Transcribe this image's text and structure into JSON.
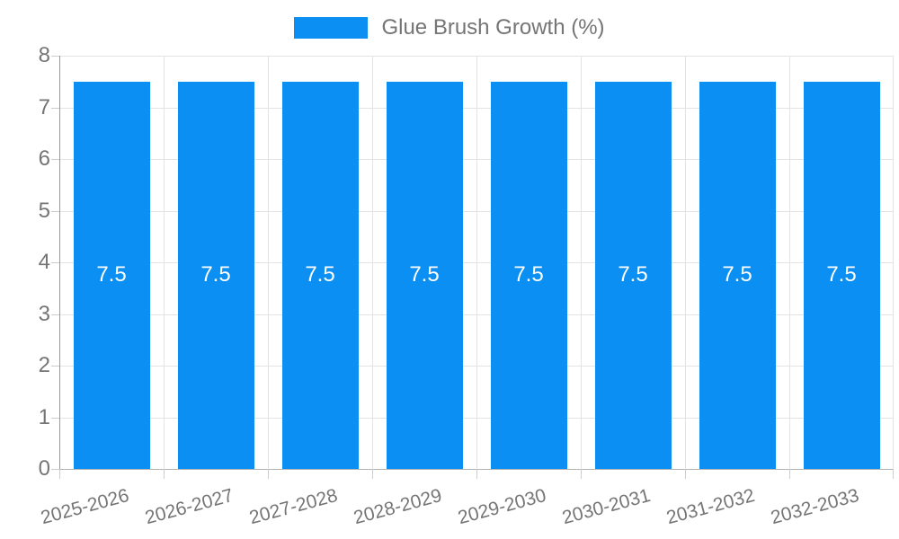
{
  "chart_data": {
    "type": "bar",
    "title": "",
    "categories": [
      "2025-2026",
      "2026-2027",
      "2027-2028",
      "2028-2029",
      "2029-2030",
      "2030-2031",
      "2031-2032",
      "2032-2033"
    ],
    "series": [
      {
        "name": "Glue Brush Growth (%)",
        "values": [
          7.5,
          7.5,
          7.5,
          7.5,
          7.5,
          7.5,
          7.5,
          7.5
        ],
        "value_labels": [
          "7.5",
          "7.5",
          "7.5",
          "7.5",
          "7.5",
          "7.5",
          "7.5",
          "7.5"
        ]
      }
    ],
    "xlabel": "",
    "ylabel": "",
    "ylim": [
      0,
      8
    ],
    "ytick_step": 1,
    "ytick_labels": [
      "0",
      "1",
      "2",
      "3",
      "4",
      "5",
      "6",
      "7",
      "8"
    ],
    "grid": true,
    "legend_position": "top"
  },
  "legend": {
    "label": "Glue Brush Growth (%)"
  },
  "colors": {
    "bar": "#0b8ff2",
    "bar_label": "#ffffff",
    "grid": "#e3e3e3",
    "tick": "#cccccc",
    "axis_y": "#999999",
    "axis_x": "#b3b3b3",
    "text": "#757575"
  }
}
